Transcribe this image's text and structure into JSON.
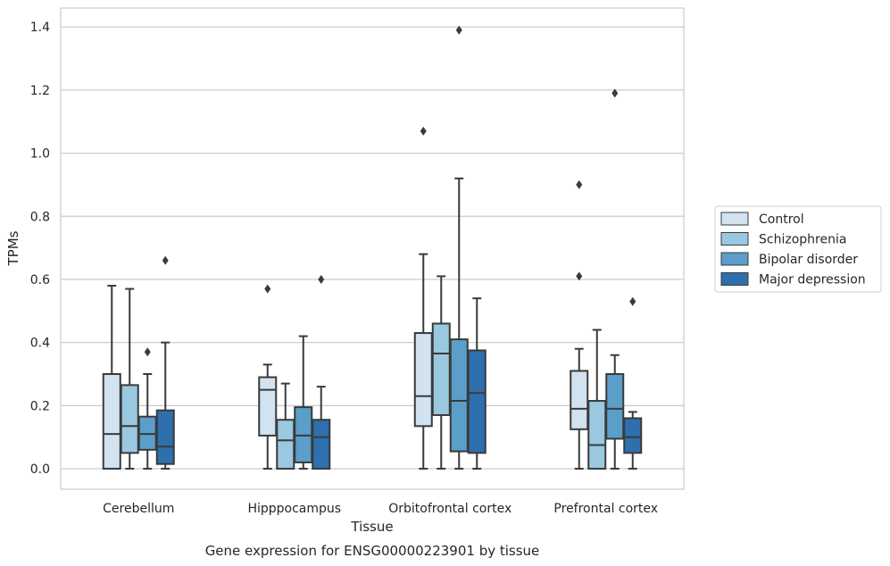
{
  "chart_data": {
    "type": "box",
    "title": "",
    "caption": "Gene expression for ENSG00000223901 by tissue",
    "xlabel": "Tissue",
    "ylabel": "TPMs",
    "ylim": [
      -0.065,
      1.46
    ],
    "yticks": [
      0.0,
      0.2,
      0.4,
      0.6,
      0.8,
      1.0,
      1.2,
      1.4
    ],
    "ytick_labels": [
      "0.0",
      "0.2",
      "0.4",
      "0.6",
      "0.8",
      "1.0",
      "1.2",
      "1.4"
    ],
    "grid": "horizontal",
    "legend_placement": "right",
    "categories": [
      "Cerebellum",
      "Hipppocampus",
      "Orbitofrontal cortex",
      "Prefrontal cortex"
    ],
    "series": [
      {
        "name": "Control",
        "color": "#d1e2f1",
        "boxes": [
          {
            "whislo": 0.0,
            "q1": 0.0,
            "med": 0.11,
            "q3": 0.3,
            "whishi": 0.58,
            "fliers": []
          },
          {
            "whislo": 0.0,
            "q1": 0.105,
            "med": 0.25,
            "q3": 0.29,
            "whishi": 0.33,
            "fliers": [
              0.57
            ]
          },
          {
            "whislo": 0.0,
            "q1": 0.135,
            "med": 0.23,
            "q3": 0.43,
            "whishi": 0.68,
            "fliers": [
              1.07
            ]
          },
          {
            "whislo": 0.0,
            "q1": 0.125,
            "med": 0.19,
            "q3": 0.31,
            "whishi": 0.38,
            "fliers": [
              0.61,
              0.9
            ]
          }
        ]
      },
      {
        "name": "Schizophrenia",
        "color": "#9ac8e0",
        "boxes": [
          {
            "whislo": 0.0,
            "q1": 0.05,
            "med": 0.135,
            "q3": 0.265,
            "whishi": 0.57,
            "fliers": []
          },
          {
            "whislo": 0.0,
            "q1": 0.0,
            "med": 0.09,
            "q3": 0.155,
            "whishi": 0.27,
            "fliers": []
          },
          {
            "whislo": 0.0,
            "q1": 0.17,
            "med": 0.365,
            "q3": 0.46,
            "whishi": 0.61,
            "fliers": []
          },
          {
            "whislo": 0.0,
            "q1": 0.0,
            "med": 0.075,
            "q3": 0.215,
            "whishi": 0.44,
            "fliers": []
          }
        ]
      },
      {
        "name": "Bipolar disorder",
        "color": "#5a9ec9",
        "boxes": [
          {
            "whislo": 0.0,
            "q1": 0.06,
            "med": 0.11,
            "q3": 0.165,
            "whishi": 0.3,
            "fliers": [
              0.37
            ]
          },
          {
            "whislo": 0.0,
            "q1": 0.02,
            "med": 0.105,
            "q3": 0.195,
            "whishi": 0.42,
            "fliers": []
          },
          {
            "whislo": 0.0,
            "q1": 0.055,
            "med": 0.215,
            "q3": 0.41,
            "whishi": 0.92,
            "fliers": [
              1.39
            ]
          },
          {
            "whislo": 0.0,
            "q1": 0.095,
            "med": 0.19,
            "q3": 0.3,
            "whishi": 0.36,
            "fliers": [
              1.19
            ]
          }
        ]
      },
      {
        "name": "Major depression",
        "color": "#2e6fae",
        "boxes": [
          {
            "whislo": 0.0,
            "q1": 0.015,
            "med": 0.07,
            "q3": 0.185,
            "whishi": 0.4,
            "fliers": [
              0.66
            ]
          },
          {
            "whislo": 0.0,
            "q1": 0.0,
            "med": 0.1,
            "q3": 0.155,
            "whishi": 0.26,
            "fliers": [
              0.6
            ]
          },
          {
            "whislo": 0.0,
            "q1": 0.05,
            "med": 0.24,
            "q3": 0.375,
            "whishi": 0.54,
            "fliers": []
          },
          {
            "whislo": 0.0,
            "q1": 0.05,
            "med": 0.1,
            "q3": 0.16,
            "whishi": 0.18,
            "fliers": [
              0.53
            ]
          }
        ]
      }
    ]
  }
}
